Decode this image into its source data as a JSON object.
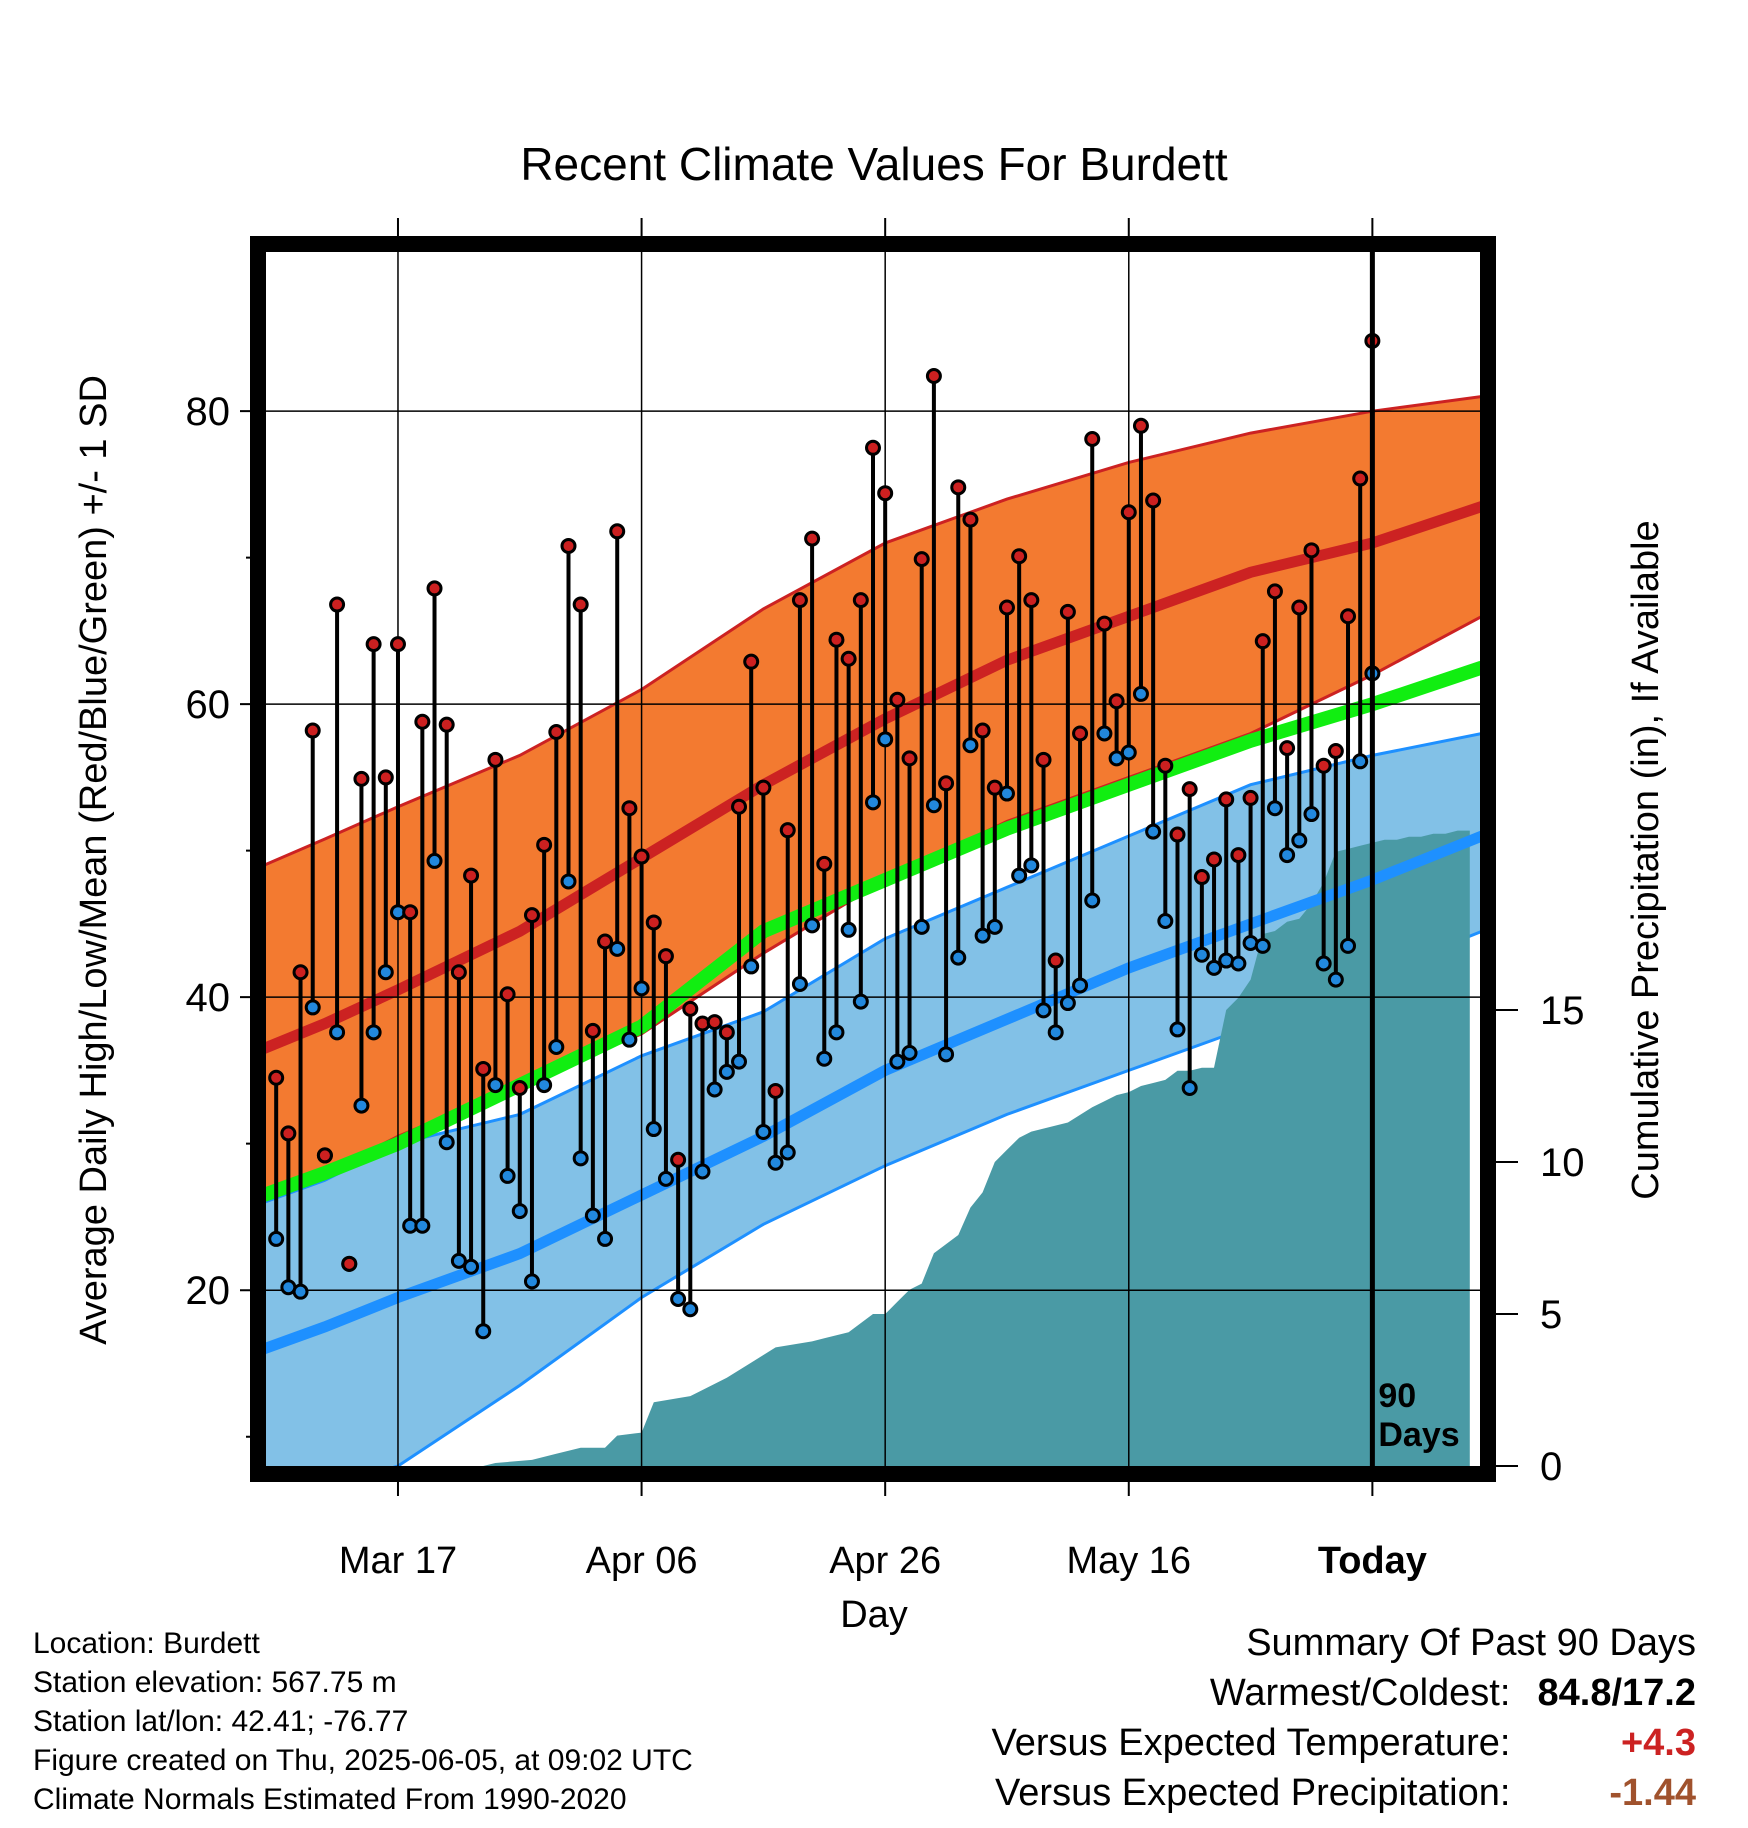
{
  "chart_data": {
    "type": "line",
    "title": "Recent Climate Values For Burdett",
    "xlabel": "Day",
    "ylabel": "Average Daily High/Low/Mean (Red/Blue/Green) +/- 1 SD",
    "y2label": "Cumulative Precipitation (in), If Available",
    "xticks": [
      {
        "day": 10,
        "label": "Mar 17"
      },
      {
        "day": 30,
        "label": "Apr 06"
      },
      {
        "day": 50,
        "label": "Apr 26"
      },
      {
        "day": 70,
        "label": "May 16"
      },
      {
        "day": 90,
        "label": "Today"
      }
    ],
    "xlim": [
      -1,
      99
    ],
    "ylim": [
      8,
      91
    ],
    "yticks_major": [
      20,
      40,
      60,
      80
    ],
    "yticks_minor": [
      10,
      30,
      50,
      70
    ],
    "y2lim": [
      0,
      40
    ],
    "y2ticks": [
      0,
      5,
      10,
      15
    ],
    "grid": true,
    "today_marker": {
      "day": 90,
      "label_line1": "90",
      "label_line2": "Days"
    },
    "normals": {
      "days": [
        -1,
        4,
        10,
        20,
        30,
        40,
        50,
        60,
        70,
        80,
        90,
        99
      ],
      "high_mean": [
        36.5,
        38.2,
        40.5,
        44.5,
        49.5,
        54.5,
        59.0,
        63.0,
        66.0,
        69.0,
        71.0,
        73.5
      ],
      "high_upper": [
        49.0,
        50.8,
        53.0,
        56.5,
        61.0,
        66.5,
        71.0,
        74.0,
        76.5,
        78.5,
        80.0,
        81.0
      ],
      "high_lower": [
        26.0,
        28.0,
        30.5,
        34.0,
        37.5,
        43.0,
        48.0,
        52.0,
        55.0,
        58.0,
        62.0,
        66.0
      ],
      "mean": [
        26.5,
        28.0,
        30.0,
        34.0,
        38.0,
        44.5,
        48.0,
        51.5,
        54.5,
        57.5,
        60.0,
        62.5
      ],
      "low_mean": [
        16.0,
        17.5,
        19.5,
        22.5,
        26.5,
        30.5,
        35.0,
        38.5,
        42.0,
        45.0,
        48.0,
        51.0
      ],
      "low_upper": [
        26.0,
        27.5,
        30.0,
        32.0,
        36.0,
        39.0,
        44.0,
        47.5,
        51.0,
        54.5,
        56.5,
        58.0
      ],
      "low_lower": [
        4.0,
        6.5,
        8.0,
        13.5,
        19.5,
        24.5,
        28.5,
        32.0,
        35.0,
        38.0,
        41.5,
        44.5
      ]
    },
    "series": [
      {
        "name": "High",
        "color": "#cc2020",
        "values": [
          34.5,
          30.7,
          41.7,
          58.2,
          29.2,
          66.8,
          21.8,
          54.9,
          64.1,
          55.0,
          64.1,
          45.8,
          58.8,
          67.9,
          58.6,
          41.7,
          48.3,
          35.1,
          56.2,
          40.2,
          33.8,
          45.6,
          50.4,
          58.1,
          70.8,
          66.8,
          37.7,
          43.8,
          71.8,
          52.9,
          49.6,
          45.1,
          42.8,
          28.9,
          39.2,
          38.2,
          38.3,
          37.6,
          53.0,
          62.9,
          54.3,
          33.6,
          51.4,
          67.1,
          71.3,
          49.1,
          64.4,
          63.1,
          67.1,
          77.5,
          74.4,
          60.3,
          56.3,
          69.9,
          82.4,
          54.6,
          74.8,
          72.6,
          58.2,
          54.3,
          66.6,
          70.1,
          67.1,
          56.2,
          42.5,
          66.3,
          58.0,
          78.1,
          65.5,
          60.2,
          73.1,
          79.0,
          73.9,
          55.8,
          51.1,
          54.2,
          48.2,
          49.4,
          53.5,
          49.7,
          53.6,
          64.3,
          67.7,
          57.0,
          66.6,
          70.5,
          55.8,
          56.8,
          66.0,
          75.4,
          84.8
        ]
      },
      {
        "name": "Low",
        "color": "#2288dd",
        "values": [
          23.5,
          20.2,
          19.9,
          39.3,
          29.2,
          37.6,
          21.8,
          32.6,
          37.6,
          41.7,
          45.8,
          24.4,
          24.4,
          49.3,
          30.1,
          22.0,
          21.6,
          17.2,
          34.0,
          27.8,
          25.4,
          20.6,
          34.0,
          36.6,
          47.9,
          29.0,
          25.1,
          23.5,
          43.3,
          37.1,
          40.6,
          31.0,
          27.6,
          19.4,
          18.7,
          28.1,
          33.7,
          34.9,
          35.6,
          42.1,
          30.8,
          28.7,
          29.4,
          40.9,
          44.9,
          35.8,
          37.6,
          44.6,
          39.7,
          53.3,
          57.6,
          35.6,
          36.2,
          44.8,
          53.1,
          36.1,
          42.7,
          57.2,
          44.2,
          44.8,
          53.9,
          48.3,
          49.0,
          39.1,
          37.6,
          39.6,
          40.8,
          46.6,
          58.0,
          56.3,
          56.7,
          60.7,
          51.3,
          45.2,
          37.8,
          33.8,
          42.9,
          42.0,
          42.5,
          42.3,
          43.7,
          43.5,
          52.9,
          49.7,
          50.7,
          52.5,
          42.3,
          41.2,
          43.5,
          56.1,
          62.1
        ]
      },
      {
        "name": "Precipitation",
        "color": "#4a9aa5",
        "days": [
          17,
          18,
          21,
          23,
          25,
          27,
          28,
          30,
          31,
          34,
          35,
          37,
          39,
          41,
          44,
          45,
          47,
          49,
          50,
          51,
          52,
          53,
          54,
          55,
          56,
          57,
          58,
          59,
          60,
          61,
          62,
          65,
          67,
          68,
          69,
          70,
          71,
          72,
          73,
          74,
          75,
          76,
          77,
          78,
          79,
          80,
          81,
          82,
          83,
          84,
          85,
          86,
          87,
          88,
          89,
          90,
          91,
          92,
          93,
          94,
          95,
          96,
          97,
          98
        ],
        "values": [
          0.0,
          0.1,
          0.2,
          0.4,
          0.6,
          0.6,
          1.0,
          1.1,
          2.1,
          2.3,
          2.5,
          2.9,
          3.4,
          3.9,
          4.1,
          4.2,
          4.4,
          5.0,
          5.0,
          5.4,
          5.8,
          6.0,
          7.0,
          7.3,
          7.6,
          8.5,
          9.0,
          10.0,
          10.4,
          10.8,
          11.0,
          11.3,
          11.8,
          12.0,
          12.2,
          12.3,
          12.5,
          12.6,
          12.7,
          13.0,
          13.0,
          13.1,
          13.1,
          15.0,
          15.4,
          16.0,
          17.5,
          17.6,
          17.9,
          18.0,
          18.5,
          19.2,
          20.2,
          20.3,
          20.4,
          20.5,
          20.6,
          20.6,
          20.7,
          20.7,
          20.8,
          20.8,
          20.9,
          20.9
        ]
      }
    ]
  },
  "info": {
    "location": "Location: Burdett",
    "elevation": "Station elevation: 567.75 m",
    "latlon": "Station lat/lon: 42.41; -76.77",
    "created": "Figure created on Thu, 2025-06-05, at 09:02 UTC",
    "normals": "Climate Normals Estimated From 1990-2020"
  },
  "summary": {
    "title": "Summary Of Past 90 Days",
    "warm_label": "Warmest/Coldest:",
    "warm_value": "84.8/17.2",
    "temp_label": "Versus Expected Temperature:",
    "temp_value": "+4.3",
    "temp_color": "#cc2222",
    "precip_label": "Versus Expected Precipitation:",
    "precip_value": "-1.44",
    "precip_color": "#a0522d"
  },
  "colors": {
    "high_band": "#f37a30",
    "high_line": "#cc2222",
    "mean_line": "#11ee11",
    "low_band": "#82c1e7",
    "low_line": "#1e90ff",
    "precip_fill": "#4a9aa5"
  }
}
